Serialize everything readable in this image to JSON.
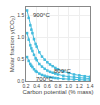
{
  "chart_data": {
    "type": "line",
    "xlabel": "Carbon potential (% mass)",
    "ylabel": "Molar fraction y(CO₂)",
    "xlim": [
      0.2,
      1.4
    ],
    "ylim": [
      0.0,
      1.7
    ],
    "xticks": [
      0.2,
      0.4,
      0.6,
      0.8,
      {
        "value": 1.0,
        "label": "1.0"
      },
      1.2,
      1.4
    ],
    "yticks": [
      {
        "value": 0.0,
        "label": "0.0"
      },
      0.5,
      {
        "value": 1.0,
        "label": "1.0"
      },
      1.5
    ],
    "grid": true,
    "x": [
      0.22,
      0.25,
      0.28,
      0.3,
      0.32,
      0.35,
      0.38,
      0.4,
      0.45,
      0.5,
      0.55,
      0.6,
      0.65,
      0.7,
      0.75,
      0.8,
      0.9,
      1.0,
      1.1,
      1.2,
      1.3,
      1.4
    ],
    "series": [
      {
        "color": "#44bbdd",
        "marker": "square",
        "values": [
          1.62,
          1.45,
          1.28,
          1.18,
          1.1,
          0.96,
          0.85,
          0.79,
          0.66,
          0.56,
          0.49,
          0.43,
          0.38,
          0.34,
          0.3,
          0.27,
          0.22,
          0.18,
          0.15,
          0.13,
          0.11,
          0.1
        ]
      },
      {
        "color": "#44bbdd",
        "marker": "square",
        "values": [
          1.1,
          0.95,
          0.82,
          0.75,
          0.69,
          0.6,
          0.52,
          0.48,
          0.39,
          0.33,
          0.28,
          0.24,
          0.21,
          0.19,
          0.17,
          0.15,
          0.12,
          0.1,
          0.085,
          0.073,
          0.063,
          0.055
        ]
      },
      {
        "color": "#44bbdd",
        "marker": "square",
        "values": [
          0.55,
          0.46,
          0.39,
          0.35,
          0.32,
          0.27,
          0.23,
          0.21,
          0.17,
          0.14,
          0.12,
          0.1,
          0.088,
          0.078,
          0.069,
          0.062,
          0.05,
          0.041,
          0.034,
          0.029,
          0.025,
          0.022
        ]
      }
    ],
    "annotations": [
      {
        "text": "900°C",
        "x": 0.285,
        "y": 1.52
      },
      {
        "text": "800°C",
        "x": 0.68,
        "y": 0.22
      },
      {
        "text": "700°C",
        "x": 0.355,
        "y": 0.055
      }
    ]
  }
}
